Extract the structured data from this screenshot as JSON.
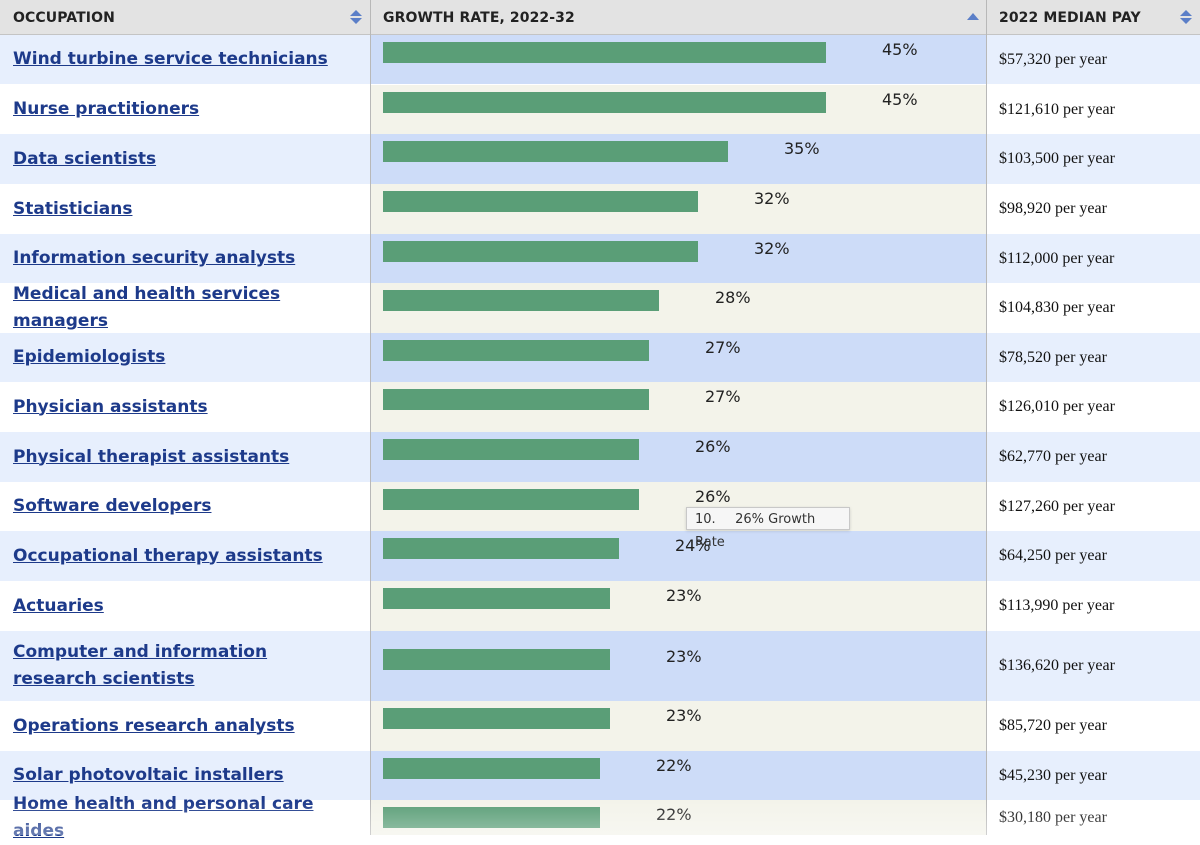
{
  "header": {
    "occupation": "OCCUPATION",
    "growth": "GROWTH RATE, 2022-32",
    "pay": "2022 MEDIAN PAY"
  },
  "icons": {
    "sort_both": "sort-up-down-icon",
    "sort_ascending": "sort-ascending-icon"
  },
  "colors": {
    "bar": "#5a9e77",
    "row_blue": "#e7effd",
    "row_white": "#ffffff",
    "growth_blue": "#cddcf8",
    "growth_beige": "#f3f3ea",
    "link": "#1d3a8a",
    "sort_icon": "#5b7fc8"
  },
  "rows": [
    {
      "occupation": "Wind turbine service technicians",
      "growth_pct": 45,
      "growth_label": "45%",
      "pay": "$57,320 per year"
    },
    {
      "occupation": "Nurse practitioners",
      "growth_pct": 45,
      "growth_label": "45%",
      "pay": "$121,610 per year"
    },
    {
      "occupation": "Data scientists",
      "growth_pct": 35,
      "growth_label": "35%",
      "pay": "$103,500 per year"
    },
    {
      "occupation": "Statisticians",
      "growth_pct": 32,
      "growth_label": "32%",
      "pay": "$98,920 per year"
    },
    {
      "occupation": "Information security analysts",
      "growth_pct": 32,
      "growth_label": "32%",
      "pay": "$112,000 per year"
    },
    {
      "occupation": "Medical and health services managers",
      "growth_pct": 28,
      "growth_label": "28%",
      "pay": "$104,830 per year"
    },
    {
      "occupation": "Epidemiologists",
      "growth_pct": 27,
      "growth_label": "27%",
      "pay": "$78,520 per year"
    },
    {
      "occupation": "Physician assistants",
      "growth_pct": 27,
      "growth_label": "27%",
      "pay": "$126,010 per year"
    },
    {
      "occupation": "Physical therapist assistants",
      "growth_pct": 26,
      "growth_label": "26%",
      "pay": "$62,770 per year"
    },
    {
      "occupation": "Software developers",
      "growth_pct": 26,
      "growth_label": "26%",
      "pay": "$127,260 per year"
    },
    {
      "occupation": "Occupational therapy assistants",
      "growth_pct": 24,
      "growth_label": "24%",
      "pay": "$64,250 per year"
    },
    {
      "occupation": "Actuaries",
      "growth_pct": 23,
      "growth_label": "23%",
      "pay": "$113,990 per year"
    },
    {
      "occupation": "Computer and information research scientists",
      "growth_pct": 23,
      "growth_label": "23%",
      "pay": "$136,620 per year"
    },
    {
      "occupation": "Operations research analysts",
      "growth_pct": 23,
      "growth_label": "23%",
      "pay": "$85,720 per year"
    },
    {
      "occupation": "Solar photovoltaic installers",
      "growth_pct": 22,
      "growth_label": "22%",
      "pay": "$45,230 per year"
    },
    {
      "occupation": "Home health and personal care aides",
      "growth_pct": 22,
      "growth_label": "22%",
      "pay": "$30,180 per year"
    }
  ],
  "tooltip": {
    "rank": "10.",
    "text": "26% Growth Rate"
  }
}
